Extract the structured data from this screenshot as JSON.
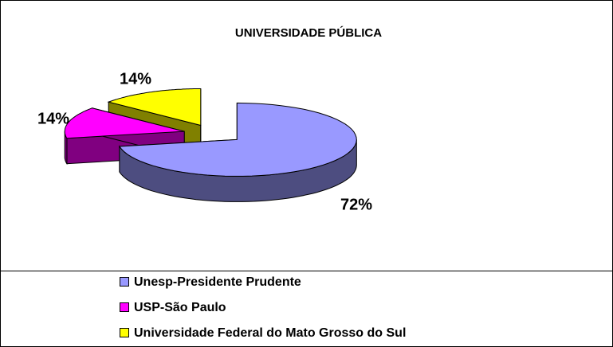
{
  "chart_data": {
    "type": "pie3d",
    "title": "UNIVERSIDADE PÚBLICA",
    "categories": [
      "Unesp-Presidente Prudente",
      "USP-São Paulo",
      "Universidade Federal do Mato Grosso do Sul"
    ],
    "values": [
      72,
      14,
      14
    ],
    "value_labels": [
      "72%",
      "14%",
      "14%"
    ],
    "colors": [
      "#9999ff",
      "#ff00ff",
      "#ffff00"
    ],
    "legend": "bottom"
  }
}
